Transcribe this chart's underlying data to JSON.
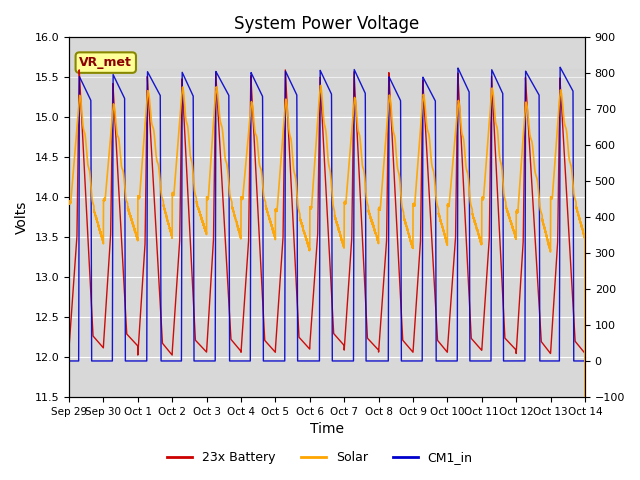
{
  "title": "System Power Voltage",
  "xlabel": "Time",
  "ylabel": "Volts",
  "ylim_left": [
    11.5,
    16.0
  ],
  "ylim_right": [
    -100,
    900
  ],
  "yticks_left": [
    11.5,
    12.0,
    12.5,
    13.0,
    13.5,
    14.0,
    14.5,
    15.0,
    15.5,
    16.0
  ],
  "yticks_right": [
    -100,
    0,
    100,
    200,
    300,
    400,
    500,
    600,
    700,
    800,
    900
  ],
  "x_labels": [
    "Sep 29",
    "Sep 30",
    "Oct 1",
    "Oct 2",
    "Oct 3",
    "Oct 4",
    "Oct 5",
    "Oct 6",
    "Oct 7",
    "Oct 8",
    "Oct 9",
    "Oct 10",
    "Oct 11",
    "Oct 12",
    "Oct 13",
    "Oct 14"
  ],
  "annotation_label": "VR_met",
  "legend_labels": [
    "23x Battery",
    "Solar",
    "CM1_in"
  ],
  "battery_color": "#cc0000",
  "solar_color": "#ffa500",
  "cm1_color": "#0000cc",
  "background_color": "#ffffff",
  "plot_bg_color": "#d8d8d8",
  "grid_color": "#ffffff",
  "shaded_band": [
    15.05,
    15.6
  ],
  "n_days": 15
}
